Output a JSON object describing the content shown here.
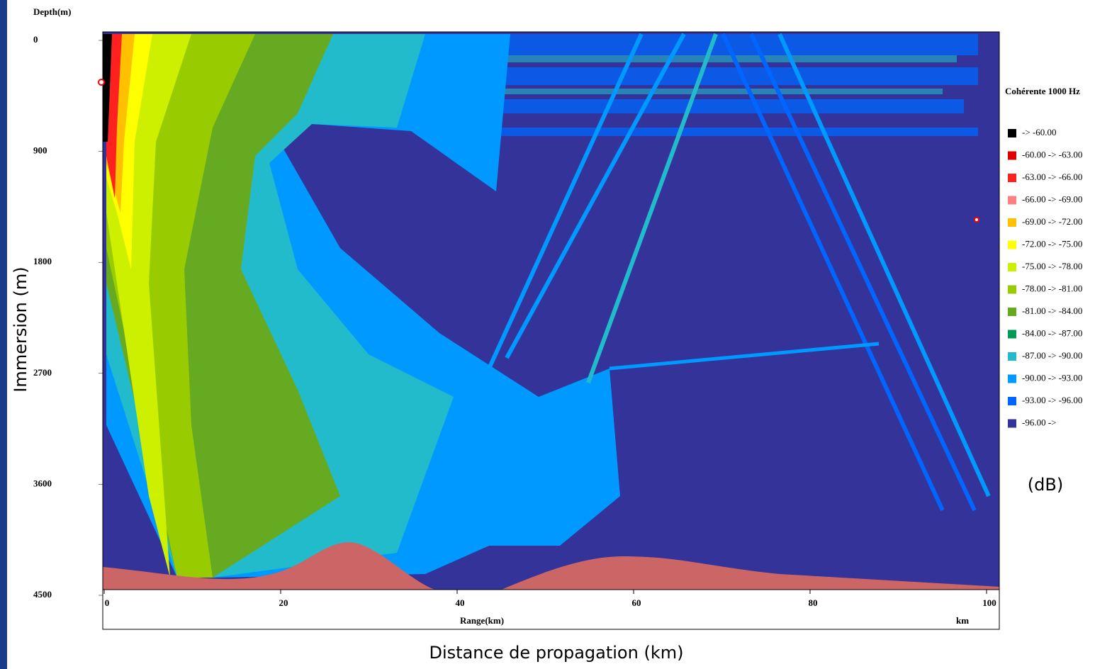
{
  "chart_data": {
    "type": "heatmap",
    "y_label": "Depth(m)",
    "x_label": "Range(km)",
    "x_unit": "km",
    "outer_y_label": "Immersion (m)",
    "outer_x_label": "Distance de propagation (km)",
    "legend_title": "Cohérente  1000 Hz",
    "legend_unit": "(dB)",
    "xlim": [
      0,
      100
    ],
    "xticks": [
      0,
      20,
      40,
      60,
      80,
      100
    ],
    "ylim": [
      4500,
      0
    ],
    "yticks": [
      0,
      900,
      1800,
      2700,
      3600,
      4500
    ],
    "legend_items": [
      {
        "label": "-> -60.00",
        "color": "#000000"
      },
      {
        "label": "-60.00 -> -63.00",
        "color": "#dd0000"
      },
      {
        "label": "-63.00 -> -66.00",
        "color": "#ff2020"
      },
      {
        "label": "-66.00 -> -69.00",
        "color": "#ff8080"
      },
      {
        "label": "-69.00 -> -72.00",
        "color": "#ffc000"
      },
      {
        "label": "-72.00 -> -75.00",
        "color": "#ffff00"
      },
      {
        "label": "-75.00 -> -78.00",
        "color": "#ccf000"
      },
      {
        "label": "-78.00 -> -81.00",
        "color": "#99cc00"
      },
      {
        "label": "-81.00 -> -84.00",
        "color": "#66aa22"
      },
      {
        "label": "-84.00 -> -87.00",
        "color": "#009955"
      },
      {
        "label": "-87.00 -> -90.00",
        "color": "#22bbcc"
      },
      {
        "label": "-90.00 -> -93.00",
        "color": "#0099ff"
      },
      {
        "label": "-93.00 -> -96.00",
        "color": "#0066ff"
      },
      {
        "label": "-96.00 ->",
        "color": "#333399"
      }
    ]
  }
}
